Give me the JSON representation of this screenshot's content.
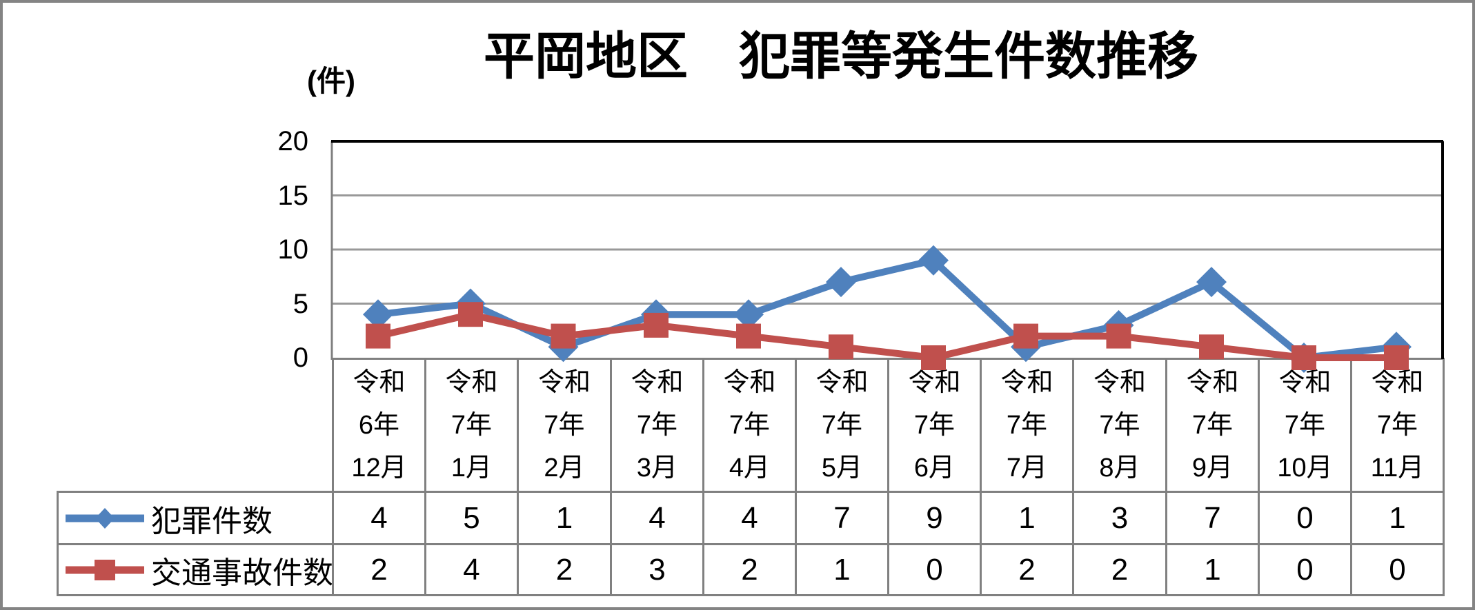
{
  "chart_data": {
    "type": "line",
    "title": "平岡地区　犯罪等発生件数推移",
    "unit_label": "(件)",
    "y_ticks": [
      20,
      15,
      10,
      5,
      0
    ],
    "ylim": [
      0,
      20
    ],
    "grid": true,
    "legend_position": "table-left",
    "categories": [
      [
        "令和",
        "6年",
        "12月"
      ],
      [
        "令和",
        "7年",
        "1月"
      ],
      [
        "令和",
        "7年",
        "2月"
      ],
      [
        "令和",
        "7年",
        "3月"
      ],
      [
        "令和",
        "7年",
        "4月"
      ],
      [
        "令和",
        "7年",
        "5月"
      ],
      [
        "令和",
        "7年",
        "6月"
      ],
      [
        "令和",
        "7年",
        "7月"
      ],
      [
        "令和",
        "7年",
        "8月"
      ],
      [
        "令和",
        "7年",
        "9月"
      ],
      [
        "令和",
        "7年",
        "10月"
      ],
      [
        "令和",
        "7年",
        "11月"
      ]
    ],
    "series": [
      {
        "name": "犯罪件数",
        "marker": "diamond",
        "color": "#4F81BD",
        "values": [
          4,
          5,
          1,
          4,
          4,
          7,
          9,
          1,
          3,
          7,
          0,
          1
        ]
      },
      {
        "name": "交通事故件数",
        "marker": "square",
        "color": "#C0504D",
        "values": [
          2,
          4,
          2,
          3,
          2,
          1,
          0,
          2,
          2,
          1,
          0,
          0
        ]
      }
    ],
    "colors": {
      "gridline": "#999999",
      "axis_line": "#808080",
      "table_border": "#808080",
      "plot_border": "#000000",
      "outer_border": "#848484",
      "background": "#FFFFFF"
    }
  }
}
